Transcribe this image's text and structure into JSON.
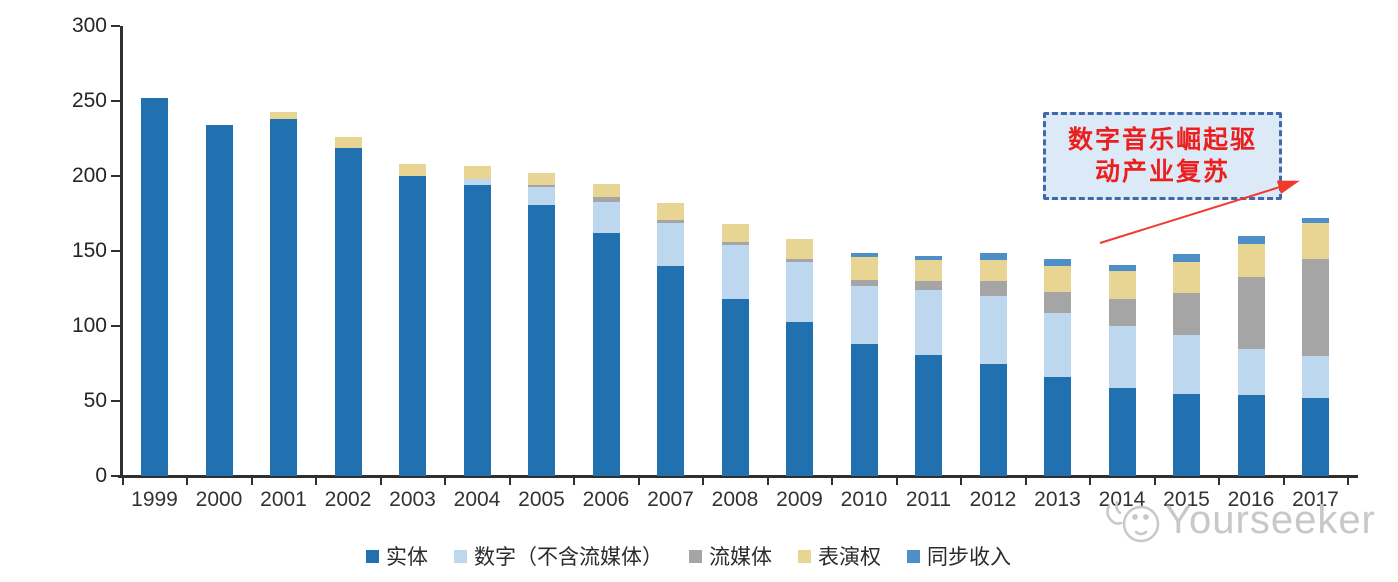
{
  "chart_data": {
    "type": "stacked-bar",
    "title": "",
    "xlabel": "",
    "ylabel": "",
    "categories": [
      "1999",
      "2000",
      "2001",
      "2002",
      "2003",
      "2004",
      "2005",
      "2006",
      "2007",
      "2008",
      "2009",
      "2010",
      "2011",
      "2012",
      "2013",
      "2014",
      "2015",
      "2016",
      "2017"
    ],
    "series": [
      {
        "name": "实体",
        "color": "#2171B0",
        "values": [
          252,
          234,
          238,
          219,
          200,
          194,
          181,
          162,
          140,
          118,
          103,
          88,
          81,
          75,
          66,
          59,
          55,
          54,
          52
        ]
      },
      {
        "name": "数字（不含流媒体）",
        "color": "#BDD7EE",
        "values": [
          0,
          0,
          0,
          0,
          0,
          4,
          12,
          21,
          29,
          36,
          40,
          39,
          43,
          45,
          43,
          41,
          39,
          31,
          28
        ]
      },
      {
        "name": "流媒体",
        "color": "#A5A5A5",
        "values": [
          0,
          0,
          0,
          0,
          0,
          0,
          1,
          3,
          2,
          2,
          2,
          4,
          6,
          10,
          14,
          18,
          28,
          48,
          65
        ]
      },
      {
        "name": "表演权",
        "color": "#E8D493",
        "values": [
          0,
          0,
          5,
          7,
          8,
          9,
          8,
          9,
          11,
          12,
          13,
          15,
          14,
          14,
          17,
          19,
          21,
          22,
          24
        ]
      },
      {
        "name": "同步收入",
        "color": "#4E8FC7",
        "values": [
          0,
          0,
          0,
          0,
          0,
          0,
          0,
          0,
          0,
          0,
          0,
          3,
          3,
          5,
          5,
          4,
          5,
          5,
          3
        ]
      }
    ],
    "ylim": [
      0,
      300
    ],
    "yticks": [
      0,
      50,
      100,
      150,
      200,
      250,
      300
    ],
    "grid": false,
    "legend_position": "bottom"
  },
  "annotation": {
    "line1": "数字音乐崛起驱",
    "line2": "动产业复苏",
    "box_fill": "#DCE9F7",
    "box_border": "#4168AC",
    "text_color": "#EC1F1F",
    "arrow_color": "#F03A2E"
  },
  "watermark": {
    "text": "Yourseeker",
    "color": "#C8C8C8"
  },
  "axis": {
    "line_color": "#2F2F2F",
    "label_color": "#262626"
  }
}
